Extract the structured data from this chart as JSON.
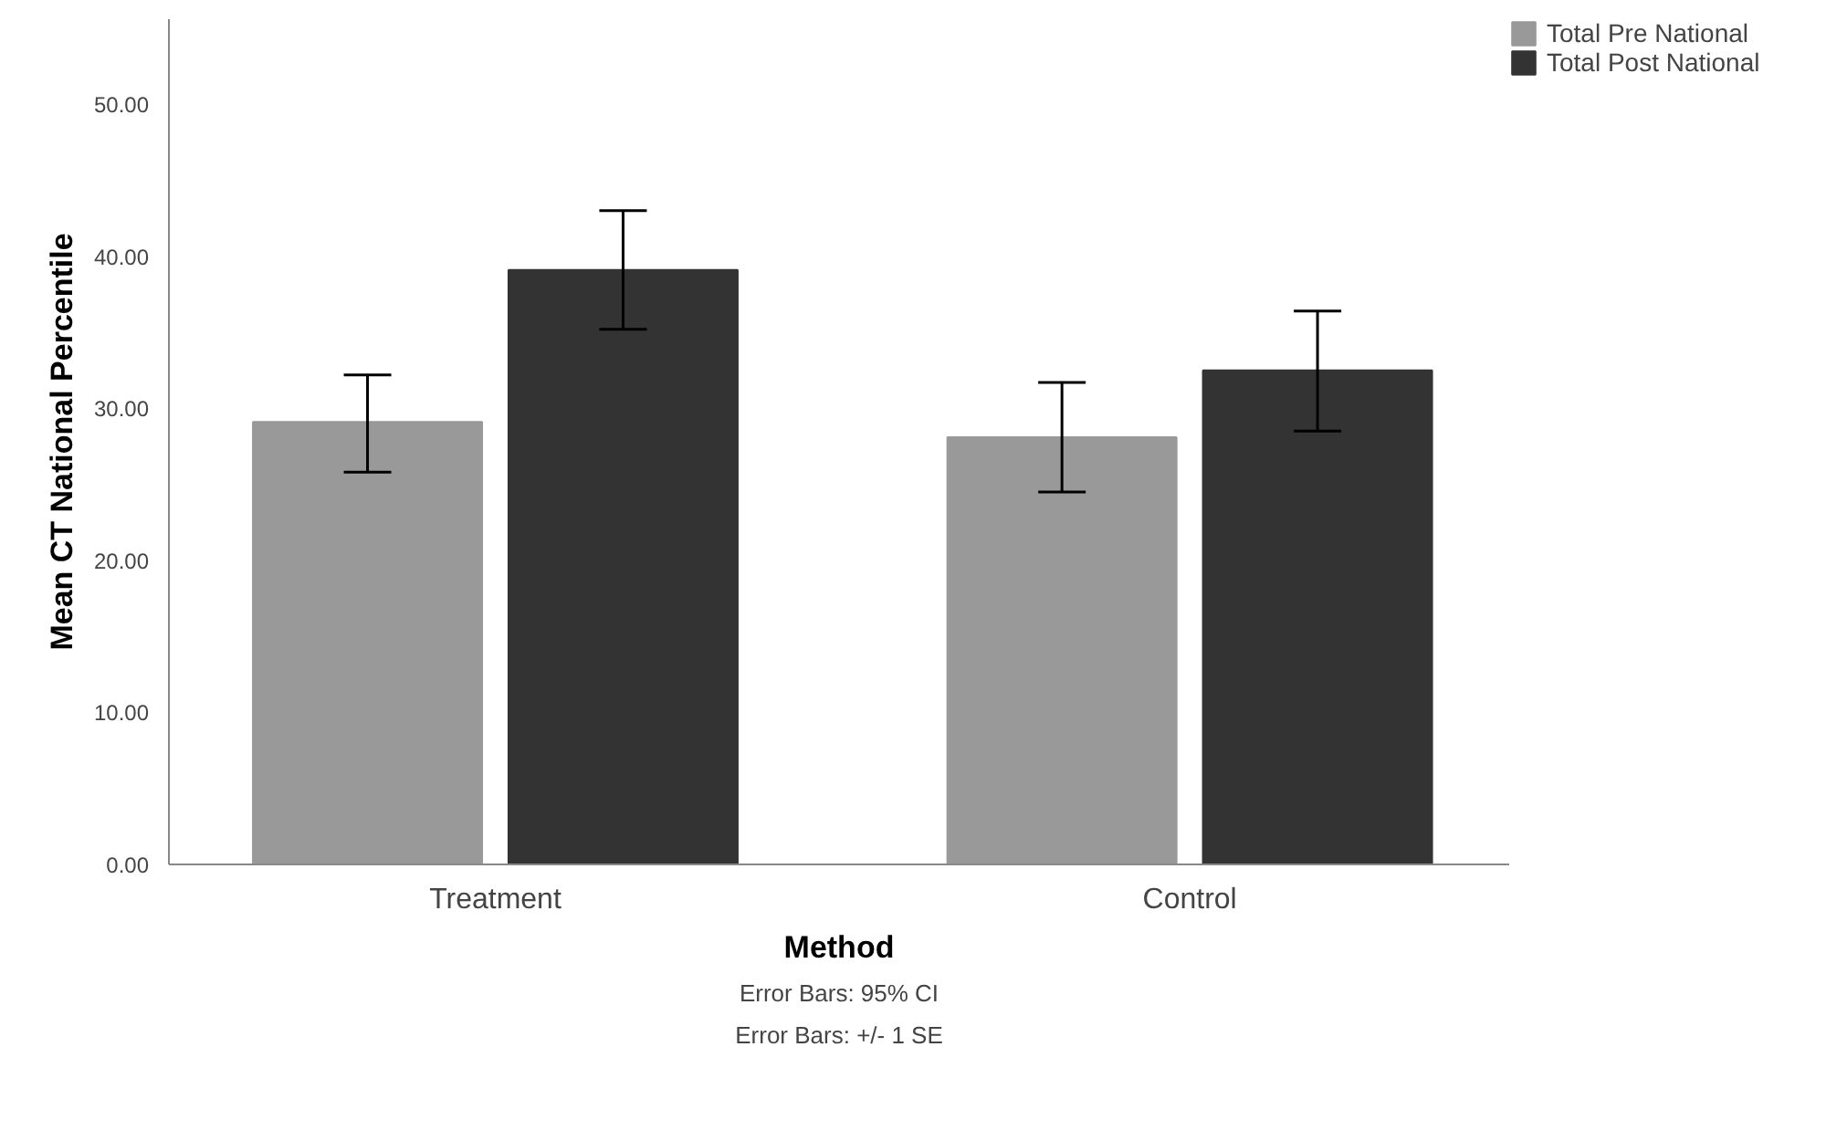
{
  "chart_data": {
    "type": "bar",
    "xlabel": "Method",
    "ylabel": "Mean CT National Percentile",
    "categories": [
      "Treatment",
      "Control"
    ],
    "series": [
      {
        "name": "Total Pre National",
        "color": "#999999",
        "values": [
          29.1,
          28.1
        ],
        "errors": [
          [
            25.8,
            32.2
          ],
          [
            24.5,
            31.7
          ]
        ]
      },
      {
        "name": "Total Post National",
        "color": "#333333",
        "values": [
          39.1,
          32.5
        ],
        "errors": [
          [
            35.2,
            43.0
          ],
          [
            28.5,
            36.4
          ]
        ]
      }
    ],
    "ylim": [
      0,
      55.6
    ],
    "yticks": [
      {
        "value": 0,
        "label": "0.00"
      },
      {
        "value": 10,
        "label": "10.00"
      },
      {
        "value": 20,
        "label": "20.00"
      },
      {
        "value": 30,
        "label": "30.00"
      },
      {
        "value": 40,
        "label": "40.00"
      },
      {
        "value": 50,
        "label": "50.00"
      }
    ],
    "grid": false,
    "legend": "top right",
    "annotations": [
      "Error Bars: 95% CI",
      "Error Bars: +/- 1 SE"
    ]
  }
}
